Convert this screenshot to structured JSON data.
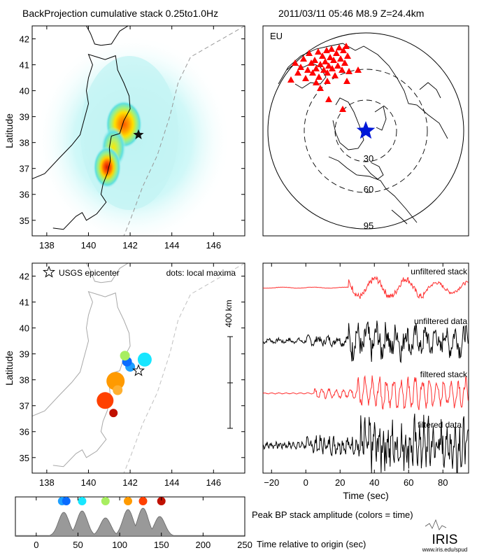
{
  "header": {
    "title": "BackProjection cumulative stack 0.25to1.0Hz",
    "event": "2011/03/11 05:46   M8.9  Z=24.4km"
  },
  "colors": {
    "stack_red": "#ff3030",
    "data_black": "#000000",
    "epicenter_blue": "#0018d8",
    "station_red": "#ff0000",
    "coast": "#000000",
    "coast_light": "#a8a8a8",
    "trench": "#999999",
    "peak_fill": "#999999"
  },
  "icons": {
    "epicenter_marker": "star-icon",
    "station_marker": "triangle-icon"
  },
  "chart_data": [
    {
      "type": "heatmap",
      "xlim": [
        137.3,
        147.5
      ],
      "ylim": [
        34.4,
        42.5
      ],
      "xticks": [
        "138",
        "140",
        "142",
        "144",
        "146"
      ],
      "yticks": [
        "35",
        "36",
        "37",
        "38",
        "39",
        "40",
        "41",
        "42"
      ],
      "ylabel": "Latitude",
      "epicenter": {
        "lon": 142.4,
        "lat": 38.3
      },
      "hotspots": [
        {
          "lon": 140.9,
          "lat": 37.05,
          "level": 1.0
        },
        {
          "lon": 141.7,
          "lat": 38.7,
          "level": 0.8
        },
        {
          "lon": 141.2,
          "lat": 37.8,
          "level": 0.6
        }
      ]
    },
    {
      "type": "scatter",
      "label": "EU",
      "distance_rings": [
        "30",
        "60",
        "95"
      ],
      "epicenter": "star",
      "stations": "Europe"
    },
    {
      "type": "scatter",
      "xlim": [
        137.3,
        147.5
      ],
      "ylim": [
        34.4,
        42.5
      ],
      "xticks": [
        "138",
        "140",
        "142",
        "144",
        "146"
      ],
      "yticks": [
        "35",
        "36",
        "37",
        "38",
        "39",
        "40",
        "41",
        "42"
      ],
      "ylabel": "Latitude",
      "legend_epicenter": "USGS epicenter",
      "legend_dots": "dots: local maxima",
      "scale_label": "400 km",
      "epicenter": {
        "lon": 142.4,
        "lat": 38.35
      },
      "points": [
        {
          "lon": 142.0,
          "lat": 38.5,
          "size": 7,
          "color": "#1ea0ff"
        },
        {
          "lon": 141.85,
          "lat": 38.7,
          "size": 7,
          "color": "#0a6cff"
        },
        {
          "lon": 142.7,
          "lat": 38.78,
          "size": 10,
          "color": "#18e6ff"
        },
        {
          "lon": 141.75,
          "lat": 38.93,
          "size": 7,
          "color": "#a8ee60"
        },
        {
          "lon": 141.3,
          "lat": 37.95,
          "size": 13,
          "color": "#ff9a00"
        },
        {
          "lon": 141.4,
          "lat": 37.6,
          "size": 7,
          "color": "#ffb030"
        },
        {
          "lon": 140.8,
          "lat": 37.2,
          "size": 12,
          "color": "#ff4000"
        },
        {
          "lon": 141.2,
          "lat": 36.72,
          "size": 6,
          "color": "#c01000"
        }
      ]
    },
    {
      "type": "line",
      "xlim": [
        -25,
        95
      ],
      "xticks": [
        "−20",
        "0",
        "20",
        "40",
        "60",
        "80"
      ],
      "xlabel": "Time (sec)",
      "series": [
        {
          "name": "unfiltered stack"
        },
        {
          "name": "unfiltered data"
        },
        {
          "name": "filtered stack"
        },
        {
          "name": "filtered data"
        }
      ]
    },
    {
      "type": "area",
      "xlim": [
        -25,
        250
      ],
      "xticks": [
        "0",
        "50",
        "100",
        "150",
        "200",
        "250"
      ],
      "xlabel": "Time relative to origin (sec)",
      "ylabel": "Peak BP stack amplitude (colors = time)",
      "peaks": [
        {
          "x": 33,
          "y": 0.85
        },
        {
          "x": 55,
          "y": 0.9
        },
        {
          "x": 83,
          "y": 0.65
        },
        {
          "x": 110,
          "y": 0.95
        },
        {
          "x": 128,
          "y": 1.0
        },
        {
          "x": 148,
          "y": 0.7
        }
      ],
      "time_dots": [
        {
          "x": 31,
          "color": "#1ea0ff"
        },
        {
          "x": 36,
          "color": "#0a6cff"
        },
        {
          "x": 55,
          "color": "#18e6ff"
        },
        {
          "x": 83,
          "color": "#a8ee60"
        },
        {
          "x": 110,
          "color": "#ff9a00"
        },
        {
          "x": 128,
          "color": "#ff4000"
        },
        {
          "x": 150,
          "color": "#c01000"
        }
      ]
    }
  ],
  "footer": {
    "logo": "IRIS",
    "url": "www.iris.edu/spud"
  }
}
